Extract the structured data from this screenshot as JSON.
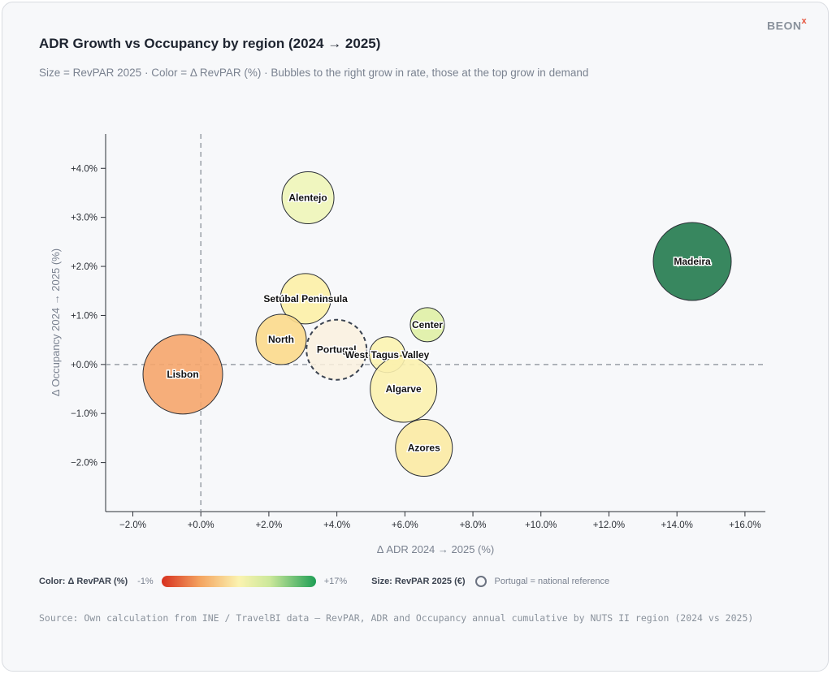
{
  "brand": {
    "logo_text": "BEON",
    "logo_mark": "x"
  },
  "header": {
    "title": "ADR Growth vs Occupancy by region (2024 → 2025)",
    "subtitle": "Size = RevPAR 2025 · Color = Δ RevPAR (%) · Bubbles to the right grow in rate, those at the top grow in demand"
  },
  "chart_data": {
    "type": "scatter",
    "subtype": "bubble",
    "title": "ADR Growth vs Occupancy by region (2024 → 2025)",
    "xlabel": "Δ ADR 2024 → 2025 (%)",
    "ylabel": "Δ Occupancy 2024 → 2025 (%)",
    "xlim": [
      -2.8,
      16.6
    ],
    "ylim": [
      -3.0,
      4.7
    ],
    "x_ticks": [
      -2,
      0,
      2,
      4,
      6,
      8,
      10,
      12,
      14,
      16
    ],
    "x_tick_labels": [
      "−2.0%",
      "+0.0%",
      "+2.0%",
      "+4.0%",
      "+6.0%",
      "+8.0%",
      "+10.0%",
      "+12.0%",
      "+14.0%",
      "+16.0%"
    ],
    "y_ticks": [
      -2,
      -1,
      0,
      1,
      2,
      3,
      4
    ],
    "y_tick_labels": [
      "−2.0%",
      "−1.0%",
      "+0.0%",
      "+1.0%",
      "+2.0%",
      "+3.0%",
      "+4.0%"
    ],
    "reference_lines": {
      "x": 0,
      "y": 0,
      "style": "dashed"
    },
    "grid": false,
    "size_metric": "RevPAR 2025 (€)",
    "color_metric": "Δ RevPAR (%)",
    "color_range": [
      -1,
      17
    ],
    "points": [
      {
        "name": "Alentejo",
        "x": 3.15,
        "y": 3.4,
        "size": 32,
        "color": "#eef5b8",
        "reference": false
      },
      {
        "name": "Setúbal Peninsula",
        "x": 3.08,
        "y": 1.34,
        "size": 31,
        "color": "#fcefa6",
        "reference": false
      },
      {
        "name": "North",
        "x": 2.36,
        "y": 0.51,
        "size": 31,
        "color": "#fbd98b",
        "reference": false
      },
      {
        "name": "Portugal",
        "x": 3.99,
        "y": 0.3,
        "size": 37,
        "color": "#faf1de",
        "reference": true
      },
      {
        "name": "West Tagus Valley",
        "x": 5.48,
        "y": 0.2,
        "size": 22,
        "color": "#fbf3b0",
        "reference": false
      },
      {
        "name": "Center",
        "x": 6.66,
        "y": 0.81,
        "size": 21,
        "color": "#dff0a5",
        "reference": false
      },
      {
        "name": "Algarve",
        "x": 5.96,
        "y": -0.5,
        "size": 41,
        "color": "#fbf1ae",
        "reference": false
      },
      {
        "name": "Azores",
        "x": 6.56,
        "y": -1.7,
        "size": 35,
        "color": "#fbeaa3",
        "reference": false
      },
      {
        "name": "Lisbon",
        "x": -0.53,
        "y": -0.2,
        "size": 49,
        "color": "#f5a56b",
        "reference": false
      },
      {
        "name": "Madeira",
        "x": 14.45,
        "y": 2.1,
        "size": 48,
        "color": "#227a4e",
        "reference": false
      }
    ]
  },
  "legend": {
    "color_label": "Color: Δ RevPAR (%)",
    "color_min": "-1%",
    "color_max": "+17%",
    "size_label": "Size: RevPAR 2025 (€)",
    "reference_note": "Portugal = national reference"
  },
  "footer": {
    "source": "Source: Own calculation from INE / TravelBI data — RevPAR, ADR and Occupancy annual cumulative by NUTS II region (2024 vs 2025)"
  }
}
